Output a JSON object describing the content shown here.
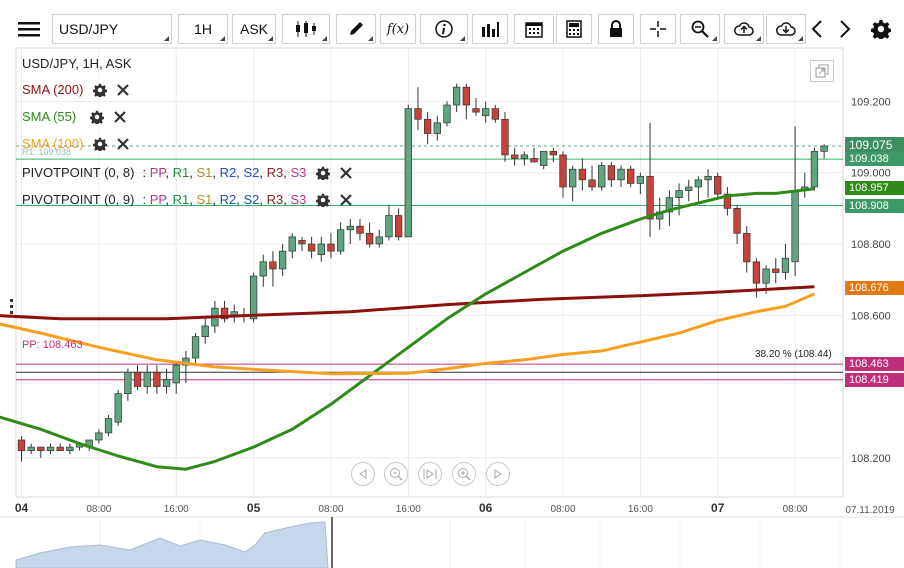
{
  "toolbar": {
    "symbol": "USD/JPY",
    "timeframe": "1H",
    "price_side": "ASK",
    "icons": [
      "menu-icon",
      "candles-icon",
      "pencil-icon",
      "fx-icon",
      "info-icon",
      "bars-icon",
      "calendar-icon",
      "calculator-icon",
      "lock-icon",
      "crosshair-icon",
      "zoom-icon",
      "cloud-upload-icon",
      "cloud-download-icon",
      "chevron-left-icon",
      "chevron-right-icon",
      "gear-icon"
    ],
    "fx_label": "f(x)"
  },
  "legend": {
    "title": "USD/JPY, 1H, ASK",
    "sma200": "SMA (200)",
    "sma55": "SMA (55)",
    "sma100": "SMA (100)",
    "pivot1": "PIVOTPOINT (0, 8)",
    "pivot2": "PIVOTPOINT (0, 9)",
    "pivot_levels_prefix": ": ",
    "pivot_levels": [
      "PP",
      "R1",
      "S1",
      "R2",
      "S2",
      "R3",
      "S3"
    ],
    "pivot_colors": [
      "#b03a8e",
      "#1e8c3a",
      "#b0901a",
      "#2050c0",
      "#2050c0",
      "#8c1e1e",
      "#b03a8e"
    ],
    "r1_partial": "R1: 109.038",
    "pp_label": "PP: 108.463",
    "fib_label": "38.20 % (108.44)"
  },
  "colors": {
    "bull": "#5fa57f",
    "bear": "#c8423a",
    "sma200": "#8b1010",
    "sma55": "#2e8b1a",
    "sma100": "#f5a020",
    "pivot_green": "#38b064",
    "pivot_pink": "#c0307a",
    "price": "#3d8f62"
  },
  "price_labels": [
    {
      "value": "109.075",
      "color": "#3d8f62",
      "kind": "price"
    },
    {
      "value": "109.038",
      "color": "#3d9a68",
      "kind": "r1"
    },
    {
      "value": "108.957",
      "color": "#2e8b1a",
      "kind": "sma55"
    },
    {
      "value": "108.908",
      "color": "#3d9a68",
      "kind": "s1"
    },
    {
      "value": "108.676",
      "color": "#e07a10",
      "kind": "sma200"
    },
    {
      "value": "108.463",
      "color": "#c0307a",
      "kind": "pp"
    },
    {
      "value": "108.419",
      "color": "#c0307a",
      "kind": "s1b"
    }
  ],
  "chart_data": {
    "type": "candlestick",
    "symbol": "USD/JPY",
    "timeframe": "1H",
    "ylim": [
      108.09,
      109.35
    ],
    "y_ticks": [
      "109.200",
      "109.000",
      "108.800",
      "108.600",
      "108.200"
    ],
    "y_tick_values": [
      109.2,
      109.0,
      108.8,
      108.6,
      108.2
    ],
    "x_ticks": [
      {
        "label": "04",
        "bold": true,
        "t": 0
      },
      {
        "label": "08:00",
        "bold": false,
        "t": 8
      },
      {
        "label": "16:00",
        "bold": false,
        "t": 16
      },
      {
        "label": "05",
        "bold": true,
        "t": 24
      },
      {
        "label": "08:00",
        "bold": false,
        "t": 32
      },
      {
        "label": "16:00",
        "bold": false,
        "t": 40
      },
      {
        "label": "06",
        "bold": true,
        "t": 48
      },
      {
        "label": "08:00",
        "bold": false,
        "t": 56
      },
      {
        "label": "16:00",
        "bold": false,
        "t": 64
      },
      {
        "label": "07",
        "bold": true,
        "t": 72
      },
      {
        "label": "08:00",
        "bold": false,
        "t": 80
      }
    ],
    "date_label": "07.11.2019",
    "candles_ohlc": [
      [
        108.25,
        108.26,
        108.19,
        108.22
      ],
      [
        108.22,
        108.24,
        108.21,
        108.23
      ],
      [
        108.23,
        108.23,
        108.2,
        108.22
      ],
      [
        108.22,
        108.24,
        108.21,
        108.23
      ],
      [
        108.23,
        108.24,
        108.22,
        108.22
      ],
      [
        108.22,
        108.24,
        108.21,
        108.23
      ],
      [
        108.23,
        108.24,
        108.22,
        108.24
      ],
      [
        108.23,
        108.25,
        108.22,
        108.25
      ],
      [
        108.25,
        108.28,
        108.24,
        108.27
      ],
      [
        108.27,
        108.32,
        108.26,
        108.31
      ],
      [
        108.3,
        108.39,
        108.29,
        108.38
      ],
      [
        108.38,
        108.45,
        108.36,
        108.44
      ],
      [
        108.44,
        108.46,
        108.39,
        108.4
      ],
      [
        108.4,
        108.46,
        108.38,
        108.44
      ],
      [
        108.44,
        108.46,
        108.38,
        108.4
      ],
      [
        108.4,
        108.45,
        108.38,
        108.42
      ],
      [
        108.41,
        108.47,
        108.38,
        108.46
      ],
      [
        108.46,
        108.5,
        108.41,
        108.48
      ],
      [
        108.48,
        108.55,
        108.46,
        108.54
      ],
      [
        108.54,
        108.59,
        108.52,
        108.57
      ],
      [
        108.57,
        108.64,
        108.55,
        108.62
      ],
      [
        108.62,
        108.64,
        108.58,
        108.59
      ],
      [
        108.6,
        108.63,
        108.58,
        108.61
      ],
      [
        108.6,
        108.62,
        108.58,
        108.6
      ],
      [
        108.59,
        108.72,
        108.58,
        108.71
      ],
      [
        108.71,
        108.77,
        108.68,
        108.75
      ],
      [
        108.75,
        108.78,
        108.68,
        108.73
      ],
      [
        108.73,
        108.8,
        108.71,
        108.78
      ],
      [
        108.78,
        108.83,
        108.76,
        108.82
      ],
      [
        108.81,
        108.82,
        108.78,
        108.8
      ],
      [
        108.8,
        108.82,
        108.76,
        108.78
      ],
      [
        108.77,
        108.82,
        108.75,
        108.8
      ],
      [
        108.8,
        108.83,
        108.76,
        108.78
      ],
      [
        108.78,
        108.86,
        108.77,
        108.84
      ],
      [
        108.84,
        108.87,
        108.8,
        108.85
      ],
      [
        108.85,
        108.87,
        108.81,
        108.83
      ],
      [
        108.83,
        108.86,
        108.79,
        108.8
      ],
      [
        108.8,
        108.84,
        108.79,
        108.82
      ],
      [
        108.82,
        108.91,
        108.81,
        108.88
      ],
      [
        108.88,
        108.9,
        108.81,
        108.82
      ],
      [
        108.82,
        109.19,
        108.82,
        109.18
      ],
      [
        109.18,
        109.24,
        109.12,
        109.15
      ],
      [
        109.15,
        109.17,
        109.08,
        109.11
      ],
      [
        109.11,
        109.16,
        109.09,
        109.14
      ],
      [
        109.14,
        109.2,
        109.13,
        109.19
      ],
      [
        109.19,
        109.25,
        109.17,
        109.24
      ],
      [
        109.24,
        109.25,
        109.15,
        109.19
      ],
      [
        109.18,
        109.21,
        109.16,
        109.17
      ],
      [
        109.16,
        109.2,
        109.14,
        109.18
      ],
      [
        109.18,
        109.19,
        109.14,
        109.15
      ],
      [
        109.15,
        109.17,
        109.03,
        109.05
      ],
      [
        109.05,
        109.07,
        109.02,
        109.04
      ],
      [
        109.04,
        109.06,
        109.02,
        109.05
      ],
      [
        109.04,
        109.07,
        109.03,
        109.03
      ],
      [
        109.02,
        109.06,
        109.01,
        109.06
      ],
      [
        109.06,
        109.07,
        109.03,
        109.05
      ],
      [
        109.05,
        109.06,
        108.93,
        108.96
      ],
      [
        108.96,
        109.02,
        108.92,
        109.01
      ],
      [
        109.01,
        109.04,
        108.95,
        108.98
      ],
      [
        108.98,
        109.02,
        108.95,
        108.96
      ],
      [
        108.96,
        109.03,
        108.95,
        109.02
      ],
      [
        109.02,
        109.03,
        108.96,
        108.98
      ],
      [
        108.98,
        109.02,
        108.96,
        109.01
      ],
      [
        109.01,
        109.02,
        108.96,
        108.97
      ],
      [
        108.97,
        109.0,
        108.94,
        108.99
      ],
      [
        108.99,
        109.14,
        108.82,
        108.87
      ],
      [
        108.87,
        108.93,
        108.84,
        108.89
      ],
      [
        108.89,
        108.95,
        108.85,
        108.93
      ],
      [
        108.93,
        108.97,
        108.88,
        108.95
      ],
      [
        108.95,
        108.98,
        108.92,
        108.96
      ],
      [
        108.96,
        108.99,
        108.92,
        108.98
      ],
      [
        108.98,
        109.01,
        108.93,
        108.99
      ],
      [
        108.99,
        109.0,
        108.93,
        108.94
      ],
      [
        108.94,
        108.96,
        108.88,
        108.9
      ],
      [
        108.9,
        108.91,
        108.8,
        108.83
      ],
      [
        108.83,
        108.85,
        108.72,
        108.75
      ],
      [
        108.75,
        108.76,
        108.65,
        108.69
      ],
      [
        108.69,
        108.74,
        108.66,
        108.73
      ],
      [
        108.73,
        108.76,
        108.69,
        108.72
      ],
      [
        108.72,
        108.8,
        108.7,
        108.76
      ],
      [
        108.75,
        109.13,
        108.71,
        108.95
      ],
      [
        108.95,
        109.0,
        108.93,
        108.96
      ],
      [
        108.96,
        109.07,
        108.95,
        109.06
      ],
      [
        109.06,
        109.08,
        109.04,
        109.075
      ]
    ],
    "series": [
      {
        "name": "SMA (200)",
        "color": "#8b1010",
        "width": 3,
        "points": [
          [
            -3,
            108.6
          ],
          [
            4,
            108.59
          ],
          [
            15,
            108.59
          ],
          [
            24,
            108.6
          ],
          [
            34,
            108.61
          ],
          [
            44,
            108.63
          ],
          [
            54,
            108.645
          ],
          [
            64,
            108.655
          ],
          [
            72,
            108.665
          ],
          [
            82,
            108.68
          ]
        ]
      },
      {
        "name": "SMA (55)",
        "color": "#2e8b1a",
        "width": 3,
        "points": [
          [
            -3,
            108.32
          ],
          [
            2,
            108.28
          ],
          [
            6,
            108.24
          ],
          [
            10,
            108.205
          ],
          [
            14,
            108.175
          ],
          [
            17,
            108.168
          ],
          [
            20,
            108.19
          ],
          [
            24,
            108.23
          ],
          [
            28,
            108.28
          ],
          [
            32,
            108.35
          ],
          [
            36,
            108.43
          ],
          [
            40,
            108.51
          ],
          [
            44,
            108.59
          ],
          [
            48,
            108.66
          ],
          [
            52,
            108.72
          ],
          [
            56,
            108.78
          ],
          [
            60,
            108.83
          ],
          [
            64,
            108.87
          ],
          [
            67,
            108.895
          ],
          [
            70,
            108.915
          ],
          [
            73,
            108.935
          ],
          [
            76,
            108.942
          ],
          [
            78,
            108.942
          ],
          [
            82,
            108.955
          ]
        ]
      },
      {
        "name": "SMA (100)",
        "color": "#f5a020",
        "width": 3,
        "points": [
          [
            -3,
            108.58
          ],
          [
            2,
            108.55
          ],
          [
            8,
            108.51
          ],
          [
            14,
            108.475
          ],
          [
            20,
            108.455
          ],
          [
            26,
            108.445
          ],
          [
            32,
            108.436
          ],
          [
            40,
            108.437
          ],
          [
            44,
            108.45
          ],
          [
            48,
            108.465
          ],
          [
            52,
            108.475
          ],
          [
            56,
            108.49
          ],
          [
            60,
            108.5
          ],
          [
            64,
            108.525
          ],
          [
            68,
            108.55
          ],
          [
            72,
            108.585
          ],
          [
            76,
            108.61
          ],
          [
            79,
            108.625
          ],
          [
            82,
            108.66
          ]
        ]
      }
    ],
    "levels": [
      {
        "name": "R1",
        "value": 109.038,
        "color": "#38b064",
        "dashed": false
      },
      {
        "name": "S1",
        "value": 108.908,
        "color": "#38b064",
        "dashed": false
      },
      {
        "name": "PP",
        "value": 108.463,
        "color": "#c0307a",
        "dashed": false
      },
      {
        "name": "S1b",
        "value": 108.419,
        "color": "#c0307a",
        "dashed": false
      },
      {
        "name": "Fib 38.2",
        "value": 108.44,
        "color": "#333333",
        "dashed": false
      },
      {
        "name": "Last",
        "value": 109.075,
        "color": "#5fa57f",
        "dashed": true
      }
    ]
  }
}
